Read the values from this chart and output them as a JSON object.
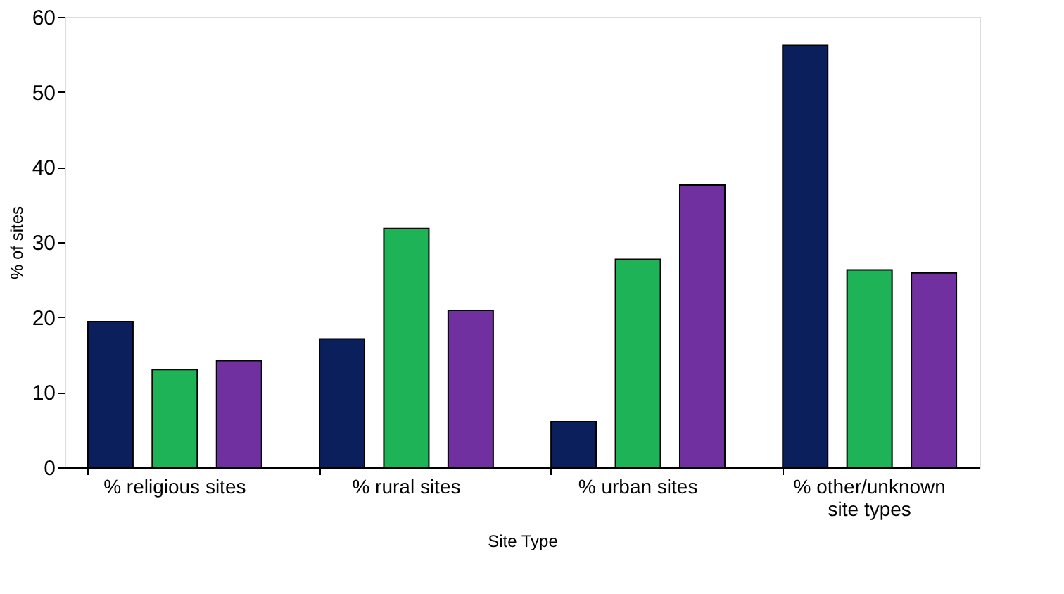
{
  "chart_data": {
    "type": "bar",
    "xlabel": "Site Type",
    "ylabel": "% of sites",
    "categories": [
      "% religious sites",
      "% rural sites",
      "% urban sites",
      "% other/unknown site types"
    ],
    "series": [
      {
        "color": "#0a1f5c",
        "values": [
          19.4,
          17.1,
          6.1,
          56.2
        ]
      },
      {
        "color": "#1db356",
        "values": [
          13.0,
          31.8,
          27.7,
          26.3
        ]
      },
      {
        "color": "#7030a0",
        "values": [
          14.2,
          20.9,
          37.6,
          25.9
        ]
      }
    ],
    "ylim": [
      0,
      60
    ],
    "yticks": [
      0,
      10,
      20,
      30,
      40,
      50,
      60
    ],
    "grid": false,
    "legend": false
  }
}
